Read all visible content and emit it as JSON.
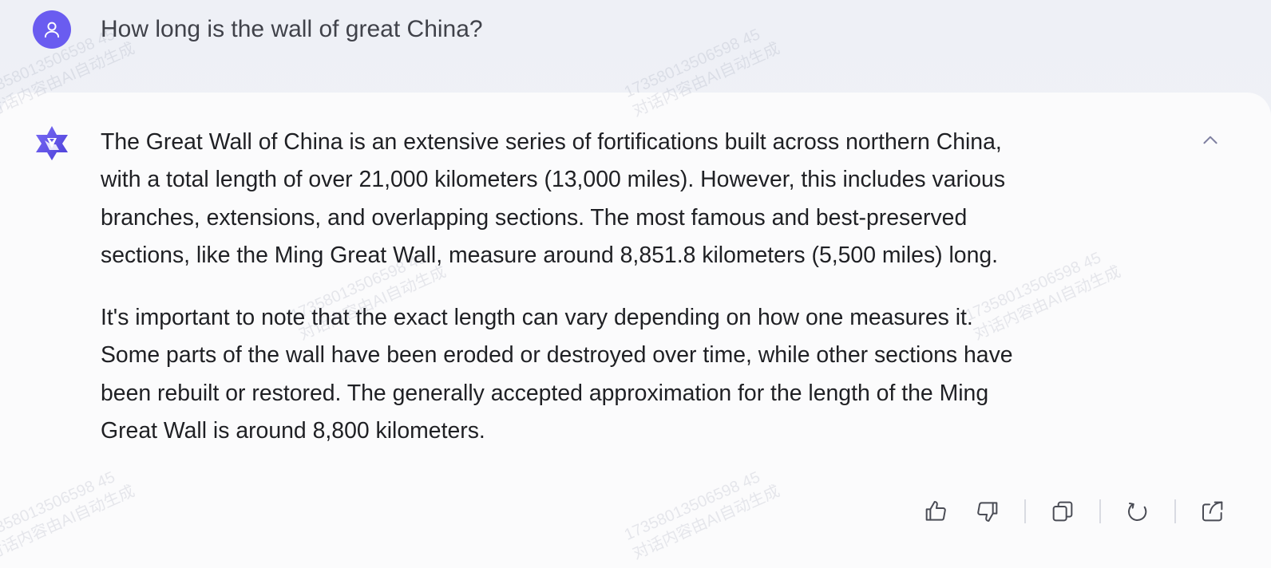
{
  "conversation": {
    "user_message": "How long is the wall of great China?",
    "assistant_paragraphs": [
      "The Great Wall of China is an extensive series of fortifications built across northern China,",
      "with a total length of over 21,000 kilometers (13,000 miles). However, this includes various",
      "branches, extensions, and overlapping sections. The most famous and best-preserved",
      "sections, like the Ming Great Wall, measure around 8,851.8 kilometers (5,500 miles) long."
    ],
    "assistant_paragraphs_2": [
      "It's important to note that the exact length can vary depending on how one measures it.",
      "Some parts of the wall have been eroded or destroyed over time, while other sections have",
      "been rebuilt or restored. The generally accepted approximation for the length of the Ming",
      "Great Wall is around 8,800 kilometers."
    ]
  },
  "icons": {
    "user_avatar": "user-icon",
    "assistant_logo": "assistant-logo-icon",
    "collapse": "chevron-up-icon",
    "like": "thumbs-up-icon",
    "dislike": "thumbs-down-icon",
    "copy": "copy-icon",
    "regenerate": "refresh-icon",
    "share": "share-icon"
  },
  "watermark": {
    "id": "17358013506598 45",
    "caption": "对话内容由AI自动生成"
  },
  "colors": {
    "accent": "#6a5cf0",
    "text": "#1f2024",
    "icon": "#4a4c55"
  }
}
